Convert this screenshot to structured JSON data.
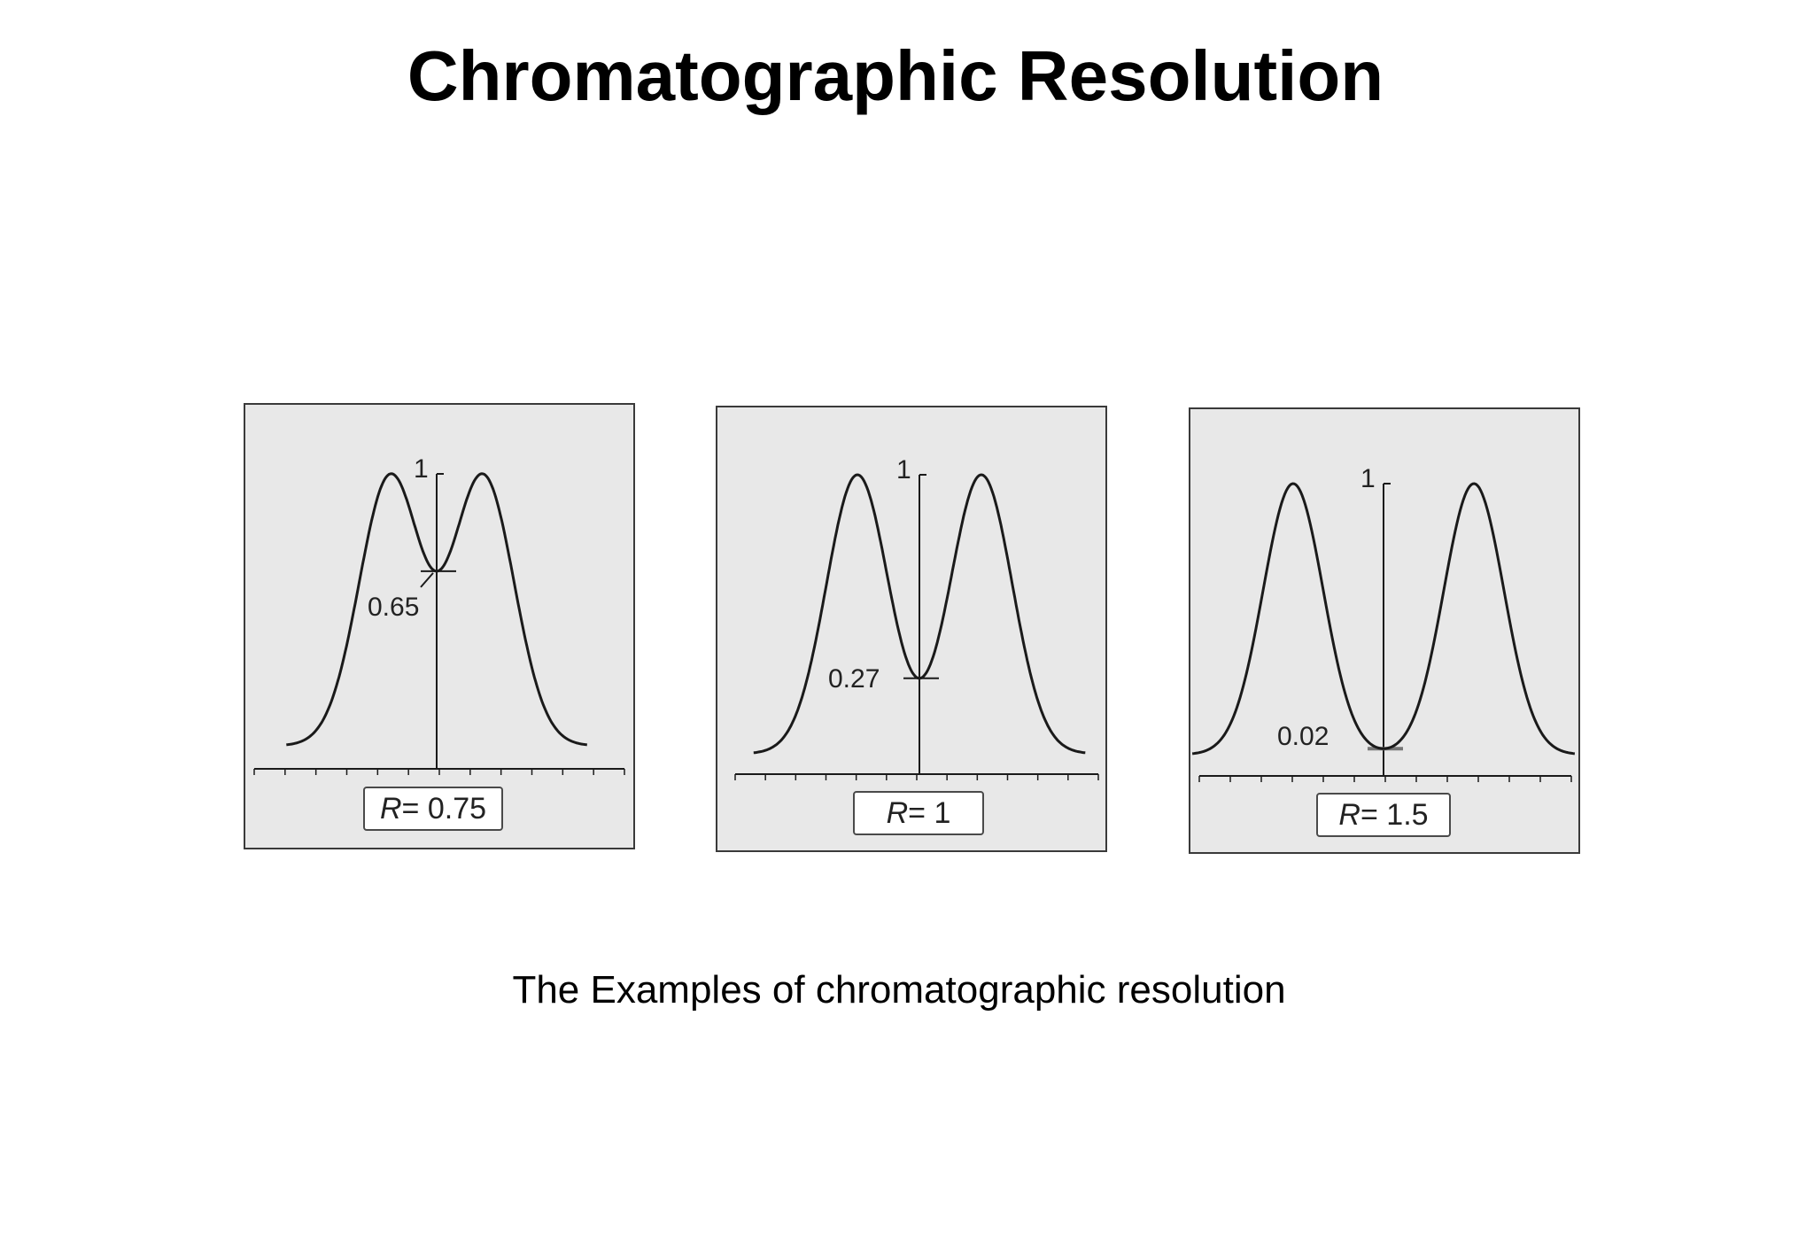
{
  "title": "Chromatographic Resolution",
  "caption": "The Examples of chromatographic resolution",
  "colors": {
    "panel_background": "#e8e8e8",
    "panel_border": "#3a3a3a",
    "curve": "#1a1a1a"
  },
  "panels": [
    {
      "r_label_var": "R",
      "r_label_value": "= 0.75",
      "resolution": 0.75,
      "peak_label": "1",
      "valley_label": "0.65",
      "valley_value": 0.65
    },
    {
      "r_label_var": "R",
      "r_label_value": "= 1",
      "resolution": 1,
      "peak_label": "1",
      "valley_label": "0.27",
      "valley_value": 0.27
    },
    {
      "r_label_var": "R",
      "r_label_value": "= 1.5",
      "resolution": 1.5,
      "peak_label": "1",
      "valley_label": "0.02",
      "valley_value": 0.02
    }
  ]
}
